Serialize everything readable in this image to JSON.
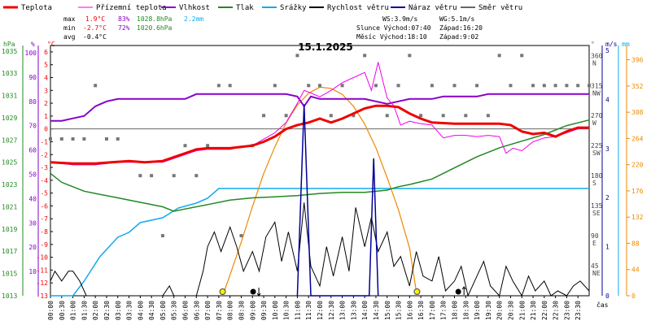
{
  "chart_data": {
    "type": "line",
    "title": "15.1.2025",
    "legend": [
      {
        "name": "Teplota",
        "color": "#ee0000"
      },
      {
        "name": "Přízemní teplota",
        "color": "#ee00ee"
      },
      {
        "name": "Vlhkost",
        "color": "#8800cc"
      },
      {
        "name": "Tlak",
        "color": "#228822"
      },
      {
        "name": "Srážky",
        "color": "#11aaee"
      },
      {
        "name": "Rychlost větru",
        "color": "#000000"
      },
      {
        "name": "Náraz větru",
        "color": "#000099"
      },
      {
        "name": "Směr větru",
        "color": "#666666"
      }
    ],
    "stats": {
      "max_label": "max",
      "min_label": "min",
      "avg_label": "avg",
      "max": {
        "temp": "1.9°C",
        "hum": "83%",
        "press": "1028.8hPa",
        "rain": "2.2mm"
      },
      "min": {
        "temp": "-2.7°C",
        "hum": "72%",
        "press": "1020.6hPa"
      },
      "avg": {
        "temp": "-0.4°C"
      }
    },
    "info": {
      "ws": "WS:3.9m/s",
      "wg": "WG:5.1m/s",
      "sun": "Slunce Východ:07:40",
      "sun_set": "Západ:16:20",
      "moon": "Měsíc Východ:18:10",
      "moon_set": "Západ:9:02"
    },
    "axis_titles": {
      "press": "hPa",
      "hum": "%",
      "temp": "°C",
      "dir": "°",
      "wind": "m/s",
      "rain": "mm",
      "x": "čas"
    },
    "axes": {
      "temp": {
        "ticks": [
          6,
          5,
          4,
          3,
          2,
          1,
          0,
          -1,
          -2,
          -3,
          -4,
          -5,
          -6,
          -7,
          -8,
          -9,
          -10,
          -11,
          -12,
          -13
        ],
        "range": [
          -13,
          6.5
        ]
      },
      "hum": {
        "ticks": [
          100,
          90,
          80,
          70,
          60,
          50,
          40,
          30,
          20,
          10
        ],
        "range": [
          0,
          103
        ]
      },
      "press": {
        "ticks": [
          1035,
          1033,
          1031,
          1029,
          1027,
          1025,
          1023,
          1021,
          1019,
          1017,
          1015,
          1013
        ],
        "range": [
          1013,
          1035.5
        ]
      },
      "dir": {
        "ticks": [
          {
            "v": 360,
            "l": "N"
          },
          {
            "v": 315,
            "l": "NW"
          },
          {
            "v": 270,
            "l": "W"
          },
          {
            "v": 225,
            "l": "SW"
          },
          {
            "v": 180,
            "l": "S"
          },
          {
            "v": 135,
            "l": "SE"
          },
          {
            "v": 90,
            "l": "E"
          },
          {
            "v": 45,
            "l": "NE"
          }
        ],
        "range": [
          0,
          375
        ]
      },
      "wind": {
        "ticks": [
          5,
          4,
          3,
          2,
          1,
          0
        ],
        "range": [
          0,
          5.1
        ]
      },
      "rain": {
        "ticks": [
          396,
          352,
          308,
          264,
          220,
          176,
          132,
          88,
          44,
          0
        ],
        "range": [
          0,
          420
        ]
      }
    },
    "x_ticks": [
      "00:00",
      "00:30",
      "01:00",
      "01:30",
      "02:00",
      "02:30",
      "03:00",
      "03:30",
      "04:00",
      "04:30",
      "05:00",
      "05:30",
      "06:00",
      "06:30",
      "07:00",
      "07:30",
      "08:00",
      "08:30",
      "09:00",
      "09:30",
      "10:00",
      "10:30",
      "11:00",
      "11:30",
      "12:00",
      "12:30",
      "13:00",
      "13:30",
      "14:00",
      "14:30",
      "15:00",
      "15:30",
      "16:00",
      "16:30",
      "17:00",
      "17:30",
      "18:00",
      "18:30",
      "19:00",
      "19:30",
      "20:00",
      "20:30",
      "21:00",
      "21:30",
      "22:00",
      "22:30",
      "23:00",
      "23:30"
    ],
    "series": {
      "temperature": [
        [
          0,
          -2.6
        ],
        [
          1,
          -2.7
        ],
        [
          2,
          -2.7
        ],
        [
          2.7,
          -2.6
        ],
        [
          3.5,
          -2.5
        ],
        [
          4.2,
          -2.6
        ],
        [
          5,
          -2.5
        ],
        [
          5.5,
          -2.2
        ],
        [
          6,
          -1.9
        ],
        [
          6.5,
          -1.6
        ],
        [
          7,
          -1.5
        ],
        [
          8,
          -1.5
        ],
        [
          8.5,
          -1.4
        ],
        [
          9,
          -1.3
        ],
        [
          9.5,
          -1.0
        ],
        [
          10,
          -0.6
        ],
        [
          10.5,
          0.0
        ],
        [
          11,
          0.3
        ],
        [
          11.5,
          0.5
        ],
        [
          12,
          0.8
        ],
        [
          12.5,
          0.5
        ],
        [
          13,
          0.8
        ],
        [
          13.5,
          1.2
        ],
        [
          14,
          1.6
        ],
        [
          14.5,
          1.8
        ],
        [
          15,
          1.8
        ],
        [
          15.5,
          1.7
        ],
        [
          16,
          1.2
        ],
        [
          16.5,
          0.8
        ],
        [
          17,
          0.5
        ],
        [
          18,
          0.4
        ],
        [
          19,
          0.4
        ],
        [
          20,
          0.4
        ],
        [
          20.5,
          0.3
        ],
        [
          21,
          -0.2
        ],
        [
          21.5,
          -0.4
        ],
        [
          22,
          -0.3
        ],
        [
          22.5,
          -0.6
        ],
        [
          23,
          -0.2
        ],
        [
          23.5,
          0.1
        ],
        [
          24,
          0.1
        ]
      ],
      "ground_temperature": [
        [
          0,
          -2.6
        ],
        [
          1,
          -2.8
        ],
        [
          2,
          -2.8
        ],
        [
          3,
          -2.6
        ],
        [
          4,
          -2.6
        ],
        [
          5,
          -2.6
        ],
        [
          5.5,
          -2.3
        ],
        [
          6,
          -2.0
        ],
        [
          6.5,
          -1.7
        ],
        [
          7,
          -1.6
        ],
        [
          8,
          -1.6
        ],
        [
          8.5,
          -1.4
        ],
        [
          9,
          -1.3
        ],
        [
          9.5,
          -0.8
        ],
        [
          10,
          -0.3
        ],
        [
          10.5,
          0.5
        ],
        [
          11,
          2.0
        ],
        [
          11.3,
          3.0
        ],
        [
          11.6,
          2.8
        ],
        [
          12,
          2.5
        ],
        [
          12.5,
          3.0
        ],
        [
          13,
          3.6
        ],
        [
          13.5,
          4.0
        ],
        [
          14,
          4.4
        ],
        [
          14.3,
          3.0
        ],
        [
          14.6,
          5.2
        ],
        [
          15,
          2.4
        ],
        [
          15.3,
          1.8
        ],
        [
          15.6,
          0.3
        ],
        [
          16,
          0.6
        ],
        [
          16.5,
          0.4
        ],
        [
          17,
          0.3
        ],
        [
          17.5,
          -0.7
        ],
        [
          18,
          -0.5
        ],
        [
          18.5,
          -0.5
        ],
        [
          19,
          -0.6
        ],
        [
          19.5,
          -0.5
        ],
        [
          20,
          -0.6
        ],
        [
          20.3,
          -1.9
        ],
        [
          20.6,
          -1.5
        ],
        [
          21,
          -1.7
        ],
        [
          21.5,
          -1.0
        ],
        [
          22,
          -0.7
        ],
        [
          22.5,
          -0.6
        ],
        [
          23,
          -0.3
        ],
        [
          23.5,
          0.0
        ],
        [
          24,
          0.1
        ]
      ],
      "humidity": [
        [
          0,
          72
        ],
        [
          0.5,
          72
        ],
        [
          1,
          73
        ],
        [
          1.5,
          74
        ],
        [
          2,
          78
        ],
        [
          2.5,
          80
        ],
        [
          3,
          81
        ],
        [
          3.5,
          81
        ],
        [
          4,
          81
        ],
        [
          4.5,
          81
        ],
        [
          5,
          81
        ],
        [
          5.5,
          81
        ],
        [
          6,
          81
        ],
        [
          6.5,
          83
        ],
        [
          7,
          83
        ],
        [
          10.5,
          83
        ],
        [
          11,
          82
        ],
        [
          11.3,
          78
        ],
        [
          11.6,
          82
        ],
        [
          12,
          81
        ],
        [
          14,
          81
        ],
        [
          15,
          79
        ],
        [
          15.5,
          80
        ],
        [
          16,
          81
        ],
        [
          17,
          81
        ],
        [
          17.5,
          82
        ],
        [
          18,
          82
        ],
        [
          19,
          82
        ],
        [
          19.5,
          83
        ],
        [
          24,
          83
        ]
      ],
      "pressure": [
        [
          0,
          1024.0
        ],
        [
          0.5,
          1023.2
        ],
        [
          1,
          1022.8
        ],
        [
          1.5,
          1022.4
        ],
        [
          2,
          1022.2
        ],
        [
          3,
          1021.8
        ],
        [
          4,
          1021.4
        ],
        [
          5,
          1021.0
        ],
        [
          5.5,
          1020.6
        ],
        [
          6,
          1020.8
        ],
        [
          7,
          1021.2
        ],
        [
          8,
          1021.6
        ],
        [
          9,
          1021.8
        ],
        [
          10,
          1021.9
        ],
        [
          11,
          1022.0
        ],
        [
          12,
          1022.2
        ],
        [
          13,
          1022.3
        ],
        [
          14,
          1022.3
        ],
        [
          15,
          1022.5
        ],
        [
          15.5,
          1022.8
        ],
        [
          16,
          1023.0
        ],
        [
          17,
          1023.5
        ],
        [
          18,
          1024.5
        ],
        [
          19,
          1025.5
        ],
        [
          20,
          1026.3
        ],
        [
          21,
          1026.9
        ],
        [
          22,
          1027.5
        ],
        [
          23,
          1028.3
        ],
        [
          24,
          1028.8
        ]
      ],
      "precipitation_mm": [
        [
          0,
          0
        ],
        [
          1,
          0
        ],
        [
          1.5,
          0.3
        ],
        [
          2.2,
          0.8
        ],
        [
          3,
          1.2
        ],
        [
          3.5,
          1.3
        ],
        [
          4,
          1.5
        ],
        [
          5,
          1.6
        ],
        [
          5.7,
          1.8
        ],
        [
          6.5,
          1.9
        ],
        [
          7,
          2.0
        ],
        [
          7.5,
          2.2
        ],
        [
          24,
          2.2
        ]
      ],
      "wind_speed": [
        [
          0,
          0.3
        ],
        [
          0.2,
          0.5
        ],
        [
          0.5,
          0.3
        ],
        [
          0.8,
          0.5
        ],
        [
          1,
          0.5
        ],
        [
          1.3,
          0.3
        ],
        [
          1.6,
          0.0
        ],
        [
          5,
          0.0
        ],
        [
          5.3,
          0.2
        ],
        [
          5.5,
          0.0
        ],
        [
          6.5,
          0.0
        ],
        [
          6.8,
          0.5
        ],
        [
          7,
          1.0
        ],
        [
          7.3,
          1.3
        ],
        [
          7.6,
          0.9
        ],
        [
          8,
          1.4
        ],
        [
          8.3,
          1.0
        ],
        [
          8.6,
          0.5
        ],
        [
          9,
          0.9
        ],
        [
          9.3,
          0.5
        ],
        [
          9.6,
          1.2
        ],
        [
          10,
          1.5
        ],
        [
          10.3,
          0.7
        ],
        [
          10.6,
          1.3
        ],
        [
          11,
          0.5
        ],
        [
          11.3,
          1.9
        ],
        [
          11.6,
          0.6
        ],
        [
          12,
          0.2
        ],
        [
          12.3,
          1.0
        ],
        [
          12.6,
          0.4
        ],
        [
          13,
          1.2
        ],
        [
          13.3,
          0.5
        ],
        [
          13.6,
          1.8
        ],
        [
          14,
          1.0
        ],
        [
          14.3,
          1.6
        ],
        [
          14.6,
          0.9
        ],
        [
          15,
          1.3
        ],
        [
          15.3,
          0.6
        ],
        [
          15.6,
          0.8
        ],
        [
          16,
          0.2
        ],
        [
          16.3,
          0.9
        ],
        [
          16.6,
          0.4
        ],
        [
          17,
          0.3
        ],
        [
          17.3,
          0.8
        ],
        [
          17.6,
          0.1
        ],
        [
          18,
          0.3
        ],
        [
          18.3,
          0.6
        ],
        [
          18.6,
          0.0
        ],
        [
          19,
          0.4
        ],
        [
          19.3,
          0.7
        ],
        [
          19.6,
          0.2
        ],
        [
          20,
          0.0
        ],
        [
          20.3,
          0.6
        ],
        [
          20.6,
          0.3
        ],
        [
          21,
          0.0
        ],
        [
          21.3,
          0.4
        ],
        [
          21.6,
          0.1
        ],
        [
          22,
          0.3
        ],
        [
          22.3,
          0.0
        ],
        [
          22.6,
          0.1
        ],
        [
          23,
          0.0
        ],
        [
          23.3,
          0.2
        ],
        [
          23.6,
          0.3
        ],
        [
          24,
          0.1
        ]
      ],
      "wind_gust": [
        [
          11,
          0.0
        ],
        [
          11.3,
          3.9
        ],
        [
          11.6,
          0.0
        ],
        [
          14.2,
          0.0
        ],
        [
          14.4,
          2.8
        ],
        [
          14.6,
          0.0
        ]
      ],
      "wind_direction": [
        [
          0,
          235
        ],
        [
          0.5,
          235
        ],
        [
          1,
          235
        ],
        [
          1.5,
          235
        ],
        [
          2,
          315
        ],
        [
          2.5,
          235
        ],
        [
          3,
          235
        ],
        [
          4,
          180
        ],
        [
          4.5,
          180
        ],
        [
          5,
          90
        ],
        [
          5.5,
          180
        ],
        [
          6,
          225
        ],
        [
          6.5,
          180
        ],
        [
          7,
          225
        ],
        [
          7.5,
          315
        ],
        [
          8,
          315
        ],
        [
          8.5,
          90
        ],
        [
          9,
          225
        ],
        [
          9.5,
          270
        ],
        [
          10,
          315
        ],
        [
          10.5,
          270
        ],
        [
          11,
          360
        ],
        [
          11.5,
          315
        ],
        [
          12,
          315
        ],
        [
          12.5,
          270
        ],
        [
          13,
          315
        ],
        [
          13.5,
          270
        ],
        [
          14,
          360
        ],
        [
          14.5,
          315
        ],
        [
          15,
          270
        ],
        [
          15.5,
          315
        ],
        [
          16,
          360
        ],
        [
          16.5,
          270
        ],
        [
          17,
          315
        ],
        [
          17.5,
          270
        ],
        [
          18,
          315
        ],
        [
          18.5,
          270
        ],
        [
          19,
          315
        ],
        [
          19.5,
          270
        ],
        [
          20,
          360
        ],
        [
          20.5,
          315
        ],
        [
          21,
          360
        ],
        [
          21.5,
          315
        ],
        [
          22,
          315
        ],
        [
          22.5,
          315
        ],
        [
          23,
          315
        ],
        [
          23.5,
          315
        ],
        [
          24,
          315
        ]
      ],
      "solar": [
        [
          7.67,
          0
        ],
        [
          8,
          35
        ],
        [
          8.5,
          90
        ],
        [
          9,
          150
        ],
        [
          9.5,
          205
        ],
        [
          10,
          250
        ],
        [
          10.5,
          290
        ],
        [
          11,
          320
        ],
        [
          11.5,
          340
        ],
        [
          12,
          350
        ],
        [
          12.5,
          348
        ],
        [
          13,
          338
        ],
        [
          13.5,
          318
        ],
        [
          14,
          288
        ],
        [
          14.5,
          248
        ],
        [
          15,
          198
        ],
        [
          15.5,
          145
        ],
        [
          16,
          80
        ],
        [
          16.33,
          0
        ]
      ]
    },
    "markers": [
      {
        "type": "sunrise",
        "x": 7.67
      },
      {
        "type": "moonset",
        "x": 9.03
      },
      {
        "type": "sunset",
        "x": 16.33
      },
      {
        "type": "moonrise",
        "x": 18.17
      }
    ]
  }
}
